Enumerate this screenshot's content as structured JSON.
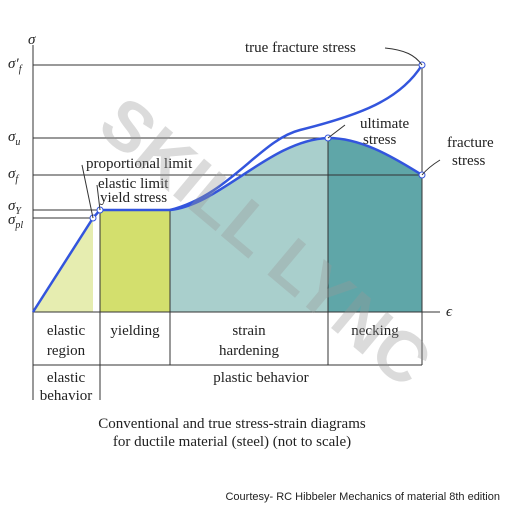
{
  "axis_labels": {
    "y": "σ",
    "x": "ϵ"
  },
  "y_levels": [
    {
      "symbol": "σ′",
      "sub": "f"
    },
    {
      "symbol": "σ",
      "sub": "u"
    },
    {
      "symbol": "σ",
      "sub": "f"
    },
    {
      "symbol": "σ",
      "sub": "Y"
    },
    {
      "symbol": "σ",
      "sub": "pl"
    }
  ],
  "annotations": {
    "true_fracture": "true fracture stress",
    "ultimate": [
      "ultimate",
      "stress"
    ],
    "fracture": [
      "fracture",
      "stress"
    ],
    "proportional": "proportional limit",
    "elastic_limit": "elastic limit",
    "yield": "yield stress"
  },
  "regions": [
    [
      "elastic",
      "region"
    ],
    [
      "yielding"
    ],
    [
      "strain",
      "hardening"
    ],
    [
      "necking"
    ]
  ],
  "behaviors": [
    [
      "elastic",
      "behavior"
    ],
    [
      "plastic behavior"
    ]
  ],
  "caption": [
    "Conventional and true stress-strain diagrams",
    "for ductile material (steel) (not to scale)"
  ],
  "courtesy": "Courtesy- RC Hibbeler Mechanics of material 8th edition",
  "watermark": "SKILL LYNC"
}
